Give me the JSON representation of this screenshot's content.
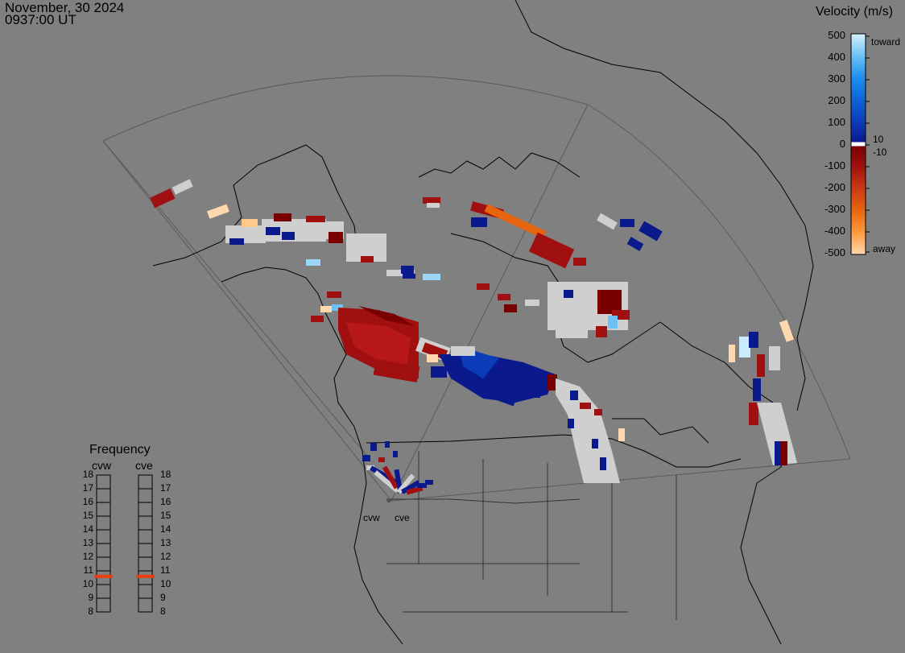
{
  "header": {
    "date": "November, 30 2024",
    "time": "0937:00 UT"
  },
  "legend": {
    "title": "Velocity (m/s)",
    "ticks": [
      "500",
      "400",
      "300",
      "200",
      "100",
      "0",
      "-100",
      "-200",
      "-300",
      "-400",
      "-500"
    ],
    "inner_ticks": [
      "10",
      "-10"
    ],
    "toward_label": "toward",
    "away_label": "away",
    "colors": {
      "toward": [
        "#0a1a8c",
        "#0d3cb8",
        "#0e63d8",
        "#1e8ef0",
        "#6cc1f5",
        "#c8ecfc"
      ],
      "away": [
        "#7a0000",
        "#a01010",
        "#c83a12",
        "#e8650f",
        "#ff9a3c",
        "#ffd8b0"
      ],
      "ground_scatter": "#cfcfcf"
    }
  },
  "frequency": {
    "title": "Frequency",
    "radars": [
      {
        "name": "cvw",
        "value_mhz": 11
      },
      {
        "name": "cve",
        "value_mhz": 11
      }
    ],
    "scale": [
      "18",
      "17",
      "16",
      "15",
      "14",
      "13",
      "12",
      "11",
      "10",
      "9",
      "8"
    ],
    "marker_color": "#e8400c"
  },
  "map": {
    "radar_labels": [
      "cvw",
      "cve"
    ]
  }
}
